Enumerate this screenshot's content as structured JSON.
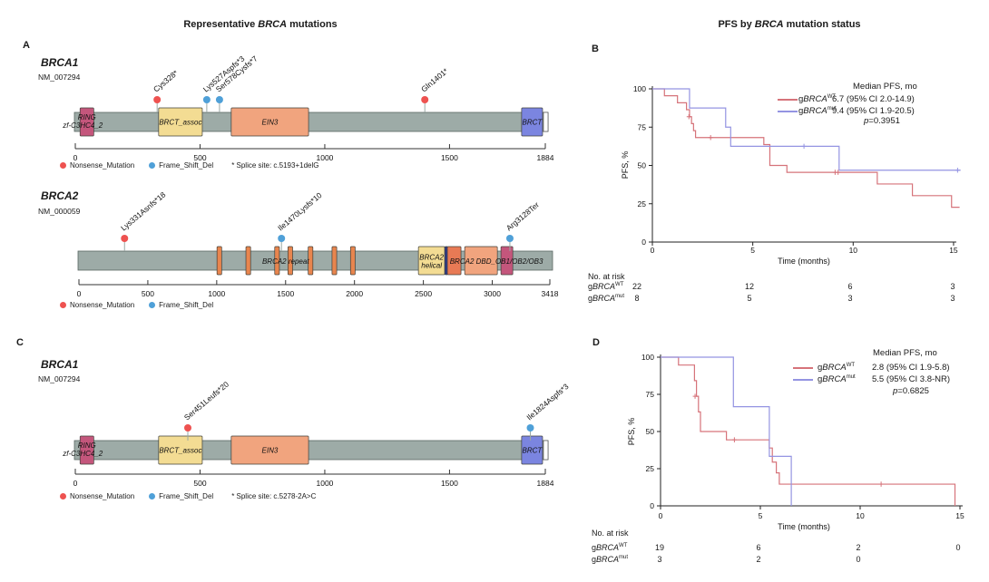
{
  "titles": {
    "left": {
      "pre": "Representative ",
      "italic": "BRCA",
      "post": " mutations"
    },
    "right": {
      "pre": "PFS by ",
      "italic": "BRCA",
      "post": " mutation status"
    }
  },
  "panel_letters": [
    "A",
    "B",
    "C",
    "D"
  ],
  "colors": {
    "bar": "#9daba7",
    "bar_border": "#5a6662",
    "nonsense": "#ee5250",
    "frameshift": "#4fa0d8",
    "stem": "#9aa8a4",
    "km_wt": "#d6737a",
    "km_mut": "#9494e2"
  },
  "chart_data": [
    {
      "panel": "A",
      "type": "lollipop",
      "gene": "BRCA1",
      "transcript": "NM_007294",
      "axis": {
        "min": 0,
        "max": 1884,
        "ticks": [
          0,
          500,
          1000,
          1500
        ],
        "end_label": "1884"
      },
      "domains": [
        {
          "label": "RING",
          "start": 19,
          "end": 74,
          "color": "#c4567c",
          "label_pos": "high"
        },
        {
          "label": "BRCT_assoc",
          "start": 334,
          "end": 509,
          "color": "#f3dc93"
        },
        {
          "label": "EIN3",
          "start": 625,
          "end": 935,
          "color": "#f1a47e"
        },
        {
          "label": "BRCT",
          "start": 1789,
          "end": 1873,
          "color": "#7b85e0"
        }
      ],
      "tail": {
        "start": 1873,
        "color": "#ffffff"
      },
      "annotations": [
        {
          "text": "zf-C3HC4_2",
          "aa": 30,
          "dy": 17
        }
      ],
      "mutations": [
        {
          "label": "Cys328*",
          "pos": 328,
          "type": "Nonsense_Mutation"
        },
        {
          "label": "Lys527Aspfs*3",
          "pos": 527,
          "type": "Frame_Shift_Del"
        },
        {
          "label": "Ser578Cysfs*7",
          "pos": 578,
          "type": "Frame_Shift_Del"
        },
        {
          "label": "Gln1401*",
          "pos": 1401,
          "type": "Nonsense_Mutation"
        }
      ],
      "legend": [
        "Nonsense_Mutation",
        "Frame_Shift_Del"
      ],
      "note": "* Splice site: c.5193+1delG"
    },
    {
      "panel": "A",
      "type": "lollipop",
      "gene": "BRCA2",
      "transcript": "NM_000059",
      "axis": {
        "min": 0,
        "max": 3418,
        "ticks": [
          0,
          500,
          1000,
          1500,
          2000,
          2500,
          3000
        ],
        "end_label": "3418"
      },
      "domains": [
        {
          "label": "",
          "start": 1002,
          "end": 1036,
          "color": "#e8854e"
        },
        {
          "label": "",
          "start": 1212,
          "end": 1246,
          "color": "#e8854e"
        },
        {
          "label": "",
          "start": 1421,
          "end": 1455,
          "color": "#e8854e"
        },
        {
          "label": "",
          "start": 1517,
          "end": 1551,
          "color": "#e8854e"
        },
        {
          "label": "",
          "start": 1664,
          "end": 1698,
          "color": "#e8854e"
        },
        {
          "label": "",
          "start": 1837,
          "end": 1871,
          "color": "#e8854e"
        },
        {
          "label": "",
          "start": 1971,
          "end": 2005,
          "color": "#e8854e"
        },
        {
          "label": "",
          "two_line": [
            "BRCA2",
            "helical"
          ],
          "start": 2464,
          "end": 2655,
          "color": "#f3dc93"
        },
        {
          "label": "",
          "start": 2655,
          "end": 2674,
          "color": "#2e3a87"
        },
        {
          "label": "",
          "start": 2674,
          "end": 2773,
          "color": "#e87a55"
        },
        {
          "label": "",
          "start": 2800,
          "end": 3037,
          "color": "#f1a47e"
        },
        {
          "label": "",
          "start": 3063,
          "end": 3149,
          "color": "#c4567c"
        }
      ],
      "tail": null,
      "annotations": [
        {
          "text": "BRCA2 repeat",
          "aa": 1500,
          "dy": 14
        },
        {
          "text": "BRCA2 DBD_OB1/OB2/OB3",
          "aa": 3030,
          "dy": 14
        }
      ],
      "mutations": [
        {
          "label": "Lys331Asnfs*18",
          "pos": 331,
          "type": "Nonsense_Mutation"
        },
        {
          "label": "Ile1470Lysfs*10",
          "pos": 1470,
          "type": "Frame_Shift_Del"
        },
        {
          "label": "Arg3128Ter",
          "pos": 3128,
          "type": "Frame_Shift_Del"
        }
      ],
      "legend": [
        "Nonsense_Mutation",
        "Frame_Shift_Del"
      ],
      "note": ""
    },
    {
      "panel": "C",
      "type": "lollipop",
      "gene": "BRCA1",
      "transcript": "NM_007294",
      "axis": {
        "min": 0,
        "max": 1884,
        "ticks": [
          0,
          500,
          1000,
          1500
        ],
        "end_label": "1884"
      },
      "domains": [
        {
          "label": "RING",
          "start": 19,
          "end": 74,
          "color": "#c4567c",
          "label_pos": "high"
        },
        {
          "label": "BRCT_assoc",
          "start": 334,
          "end": 509,
          "color": "#f3dc93"
        },
        {
          "label": "EIN3",
          "start": 625,
          "end": 935,
          "color": "#f1a47e"
        },
        {
          "label": "BRCT",
          "start": 1789,
          "end": 1873,
          "color": "#7b85e0"
        }
      ],
      "tail": {
        "start": 1873,
        "color": "#ffffff"
      },
      "annotations": [
        {
          "text": "zf-C3HC4_2",
          "aa": 30,
          "dy": 17
        }
      ],
      "mutations": [
        {
          "label": "Ser451Leufs*20",
          "pos": 451,
          "type": "Nonsense_Mutation"
        },
        {
          "label": "Ile1824Aspfs*3",
          "pos": 1824,
          "type": "Frame_Shift_Del"
        }
      ],
      "legend": [
        "Nonsense_Mutation",
        "Frame_Shift_Del"
      ],
      "note": "* Splice site: c.5278-2A>C"
    },
    {
      "panel": "B",
      "type": "line",
      "subtype": "kaplan_meier",
      "xlabel": "Time (months)",
      "ylabel": "PFS, %",
      "xticks": [
        0,
        5,
        10,
        15
      ],
      "yticks": [
        0,
        25,
        50,
        75,
        100
      ],
      "legend_title": "Median PFS, mo",
      "p_value": "p=0.3951",
      "risk_title": "No. at risk",
      "series": [
        {
          "name": {
            "pre": "g",
            "gene": "BRCA",
            "sup": "WT"
          },
          "color": "#d6737a",
          "median": "6.7 (95% CI 2.0-14.9)",
          "at_risk": [
            "22",
            "12",
            "6",
            "3"
          ],
          "steps": [
            [
              0,
              100
            ],
            [
              0.6,
              95.5
            ],
            [
              1.25,
              90.9
            ],
            [
              1.7,
              86.4
            ],
            [
              1.85,
              81.8
            ],
            [
              1.95,
              77.3
            ],
            [
              2.05,
              72.7
            ],
            [
              2.15,
              68.2
            ],
            [
              5.55,
              63.6
            ],
            [
              5.85,
              50
            ],
            [
              6.7,
              45.5
            ],
            [
              11.2,
              37.9
            ],
            [
              12.95,
              30.3
            ],
            [
              14.9,
              22.7
            ]
          ],
          "end": 15.3,
          "censors": [
            [
              1.82,
              81.8
            ],
            [
              2.9,
              68.2
            ],
            [
              9.1,
              45.5
            ],
            [
              9.25,
              45.5
            ]
          ]
        },
        {
          "name": {
            "pre": "g",
            "gene": "BRCA",
            "sup": "mut"
          },
          "color": "#9494e2",
          "median": "9.4 (95% CI 1.9-20.5)",
          "at_risk": [
            "8",
            "5",
            "3",
            "3"
          ],
          "steps": [
            [
              0,
              100
            ],
            [
              1.85,
              87.5
            ],
            [
              3.65,
              75
            ],
            [
              3.9,
              62.5
            ],
            [
              9.3,
              46.9
            ]
          ],
          "end": 15.35,
          "censors": [
            [
              7.55,
              62.5
            ],
            [
              15.2,
              46.9
            ]
          ]
        }
      ]
    },
    {
      "panel": "D",
      "type": "line",
      "subtype": "kaplan_meier",
      "xlabel": "Time (months)",
      "ylabel": "PFS, %",
      "xticks": [
        0,
        5,
        10,
        15
      ],
      "yticks": [
        0,
        25,
        50,
        75,
        100
      ],
      "legend_title": "Median PFS, mo",
      "p_value": "p=0.6825",
      "risk_title": "No. at risk",
      "series": [
        {
          "name": {
            "pre": "g",
            "gene": "BRCA",
            "sup": "WT"
          },
          "color": "#d6737a",
          "median": "2.8 (95% CI 1.9-5.8)",
          "at_risk": [
            "19",
            "6",
            "2",
            "0"
          ],
          "steps": [
            [
              0,
              100
            ],
            [
              0.9,
              94.7
            ],
            [
              1.7,
              84.2
            ],
            [
              1.8,
              73.7
            ],
            [
              1.9,
              63.2
            ],
            [
              2.0,
              50
            ],
            [
              3.3,
              44.4
            ],
            [
              5.45,
              38.9
            ],
            [
              5.6,
              29.4
            ],
            [
              5.8,
              22.2
            ],
            [
              5.95,
              14.6
            ],
            [
              14.75,
              0
            ]
          ],
          "end": 14.75,
          "censors": [
            [
              1.73,
              73.7
            ],
            [
              3.7,
              44.4
            ],
            [
              11.05,
              14.6
            ]
          ]
        },
        {
          "name": {
            "pre": "g",
            "gene": "BRCA",
            "sup": "mut"
          },
          "color": "#9494e2",
          "median": "5.5 (95% CI 3.8-NR)",
          "at_risk": [
            "3",
            "2",
            "0",
            ""
          ],
          "steps": [
            [
              0,
              100
            ],
            [
              3.65,
              66.7
            ],
            [
              5.45,
              33.3
            ],
            [
              6.55,
              0
            ]
          ],
          "end": 6.55,
          "censors": []
        }
      ]
    }
  ]
}
